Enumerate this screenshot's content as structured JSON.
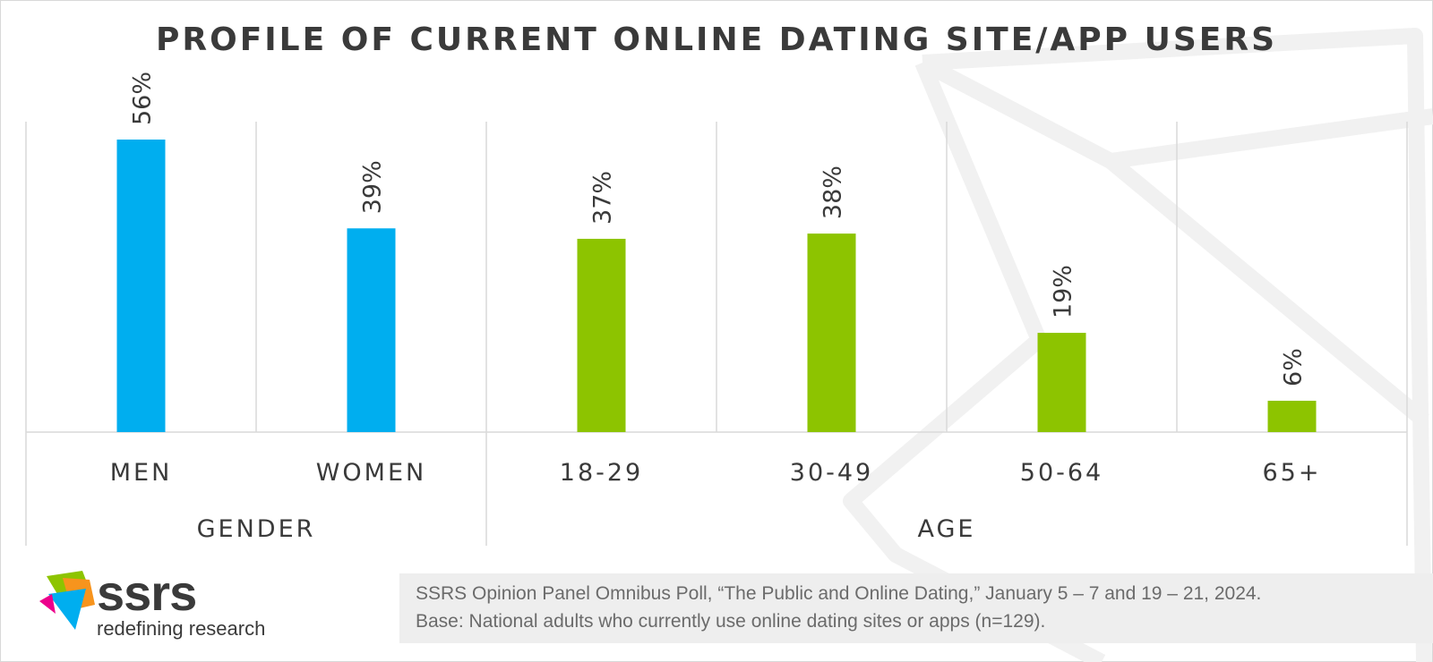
{
  "chart_data": {
    "type": "bar",
    "title": "PROFILE OF CURRENT ONLINE DATING SITE/APP USERS",
    "categories": [
      "MEN",
      "WOMEN",
      "18-29",
      "30-49",
      "50-64",
      "65+"
    ],
    "values": [
      56,
      39,
      37,
      38,
      19,
      6
    ],
    "value_labels": [
      "56%",
      "39%",
      "37%",
      "38%",
      "19%",
      "6%"
    ],
    "groups": [
      {
        "label": "GENDER",
        "categories": [
          "MEN",
          "WOMEN"
        ],
        "color": "#00aeef"
      },
      {
        "label": "AGE",
        "categories": [
          "18-29",
          "30-49",
          "50-64",
          "65+"
        ],
        "color": "#8dc400"
      }
    ],
    "ylim": [
      0,
      60
    ],
    "grid": false
  },
  "footer": {
    "source": "SSRS Opinion Panel Omnibus Poll, “The Public and Online Dating,” January 5 – 7 and 19 – 21, 2024.",
    "base": "Base: National adults who currently use online dating sites or apps (n=129)."
  },
  "logo": {
    "wordmark": "ssrs",
    "tagline": "redefining research"
  },
  "colors": {
    "gender": "#00aeef",
    "age": "#8dc400",
    "text": "#3a3a3a",
    "divider": "#d9d9d9"
  }
}
